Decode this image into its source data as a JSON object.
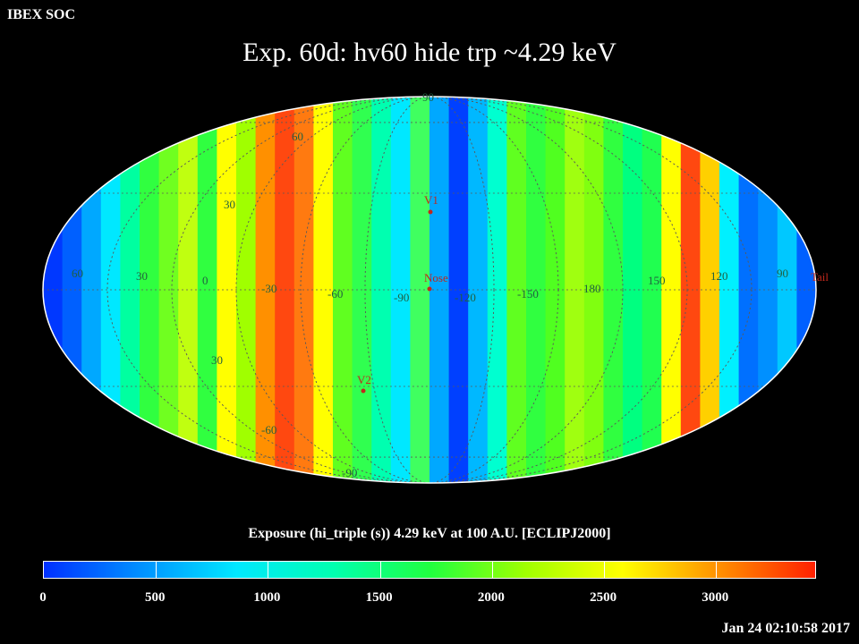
{
  "header": {
    "label": "IBEX SOC"
  },
  "map": {
    "title": "Exp.   60d: hv60 hide trp ~4.29 keV",
    "projection": "Mollweide ellipse",
    "colors": {
      "grid": "#5a5a5a",
      "grid_label": "#206040",
      "marker": "#c0281c",
      "outline": "#ffffff"
    },
    "longitude_labels": [
      "60",
      "30",
      "0",
      "-30",
      "-60",
      "-90",
      "-120",
      "-150",
      "180",
      "150",
      "120",
      "90"
    ],
    "latitude_labels": [
      "90",
      "60",
      "30",
      "30",
      "-60",
      "-90"
    ],
    "markers": [
      {
        "name": "v1",
        "label": "V1"
      },
      {
        "name": "nose",
        "label": "Nose"
      },
      {
        "name": "v2",
        "label": "V2"
      },
      {
        "name": "tail",
        "label": "Tail"
      }
    ],
    "strip_values": [
      "#0038ff",
      "#0060ff",
      "#00a8ff",
      "#00e8ff",
      "#00ffa0",
      "#30ff40",
      "#70ff20",
      "#c0ff10",
      "#30ff40",
      "#ffff00",
      "#a0ff00",
      "#ff9000",
      "#ff4810",
      "#ff7a10",
      "#ffff00",
      "#60ff20",
      "#30ff50",
      "#00ffb0",
      "#00e8ff",
      "#40ff60",
      "#00a8ff",
      "#0040ff",
      "#00b8ff",
      "#00ffd0",
      "#60ff20",
      "#30ff40",
      "#50ff20",
      "#a0ff10",
      "#80ff10",
      "#30ff40",
      "#00ff80",
      "#20ff50",
      "#ffff00",
      "#ff4810",
      "#ffd000",
      "#00f0ff",
      "#0070ff",
      "#0090ff",
      "#00c8ff",
      "#0060ff"
    ]
  },
  "colorbar": {
    "title": "Exposure (hi_triple (s))  4.29 keV at 100 A.U. [ECLIPJ2000]",
    "tick_labels": [
      "0",
      "500",
      "1000",
      "1500",
      "2000",
      "2500",
      "3000"
    ],
    "range": [
      0,
      3450
    ],
    "stops": [
      "#0030ff",
      "#0090ff",
      "#00e8ff",
      "#00ffb0",
      "#20ff40",
      "#a0ff00",
      "#ffff00",
      "#ff9000",
      "#ff2000"
    ]
  },
  "footer": {
    "timestamp": "Jan 24 02:10:58 2017"
  }
}
